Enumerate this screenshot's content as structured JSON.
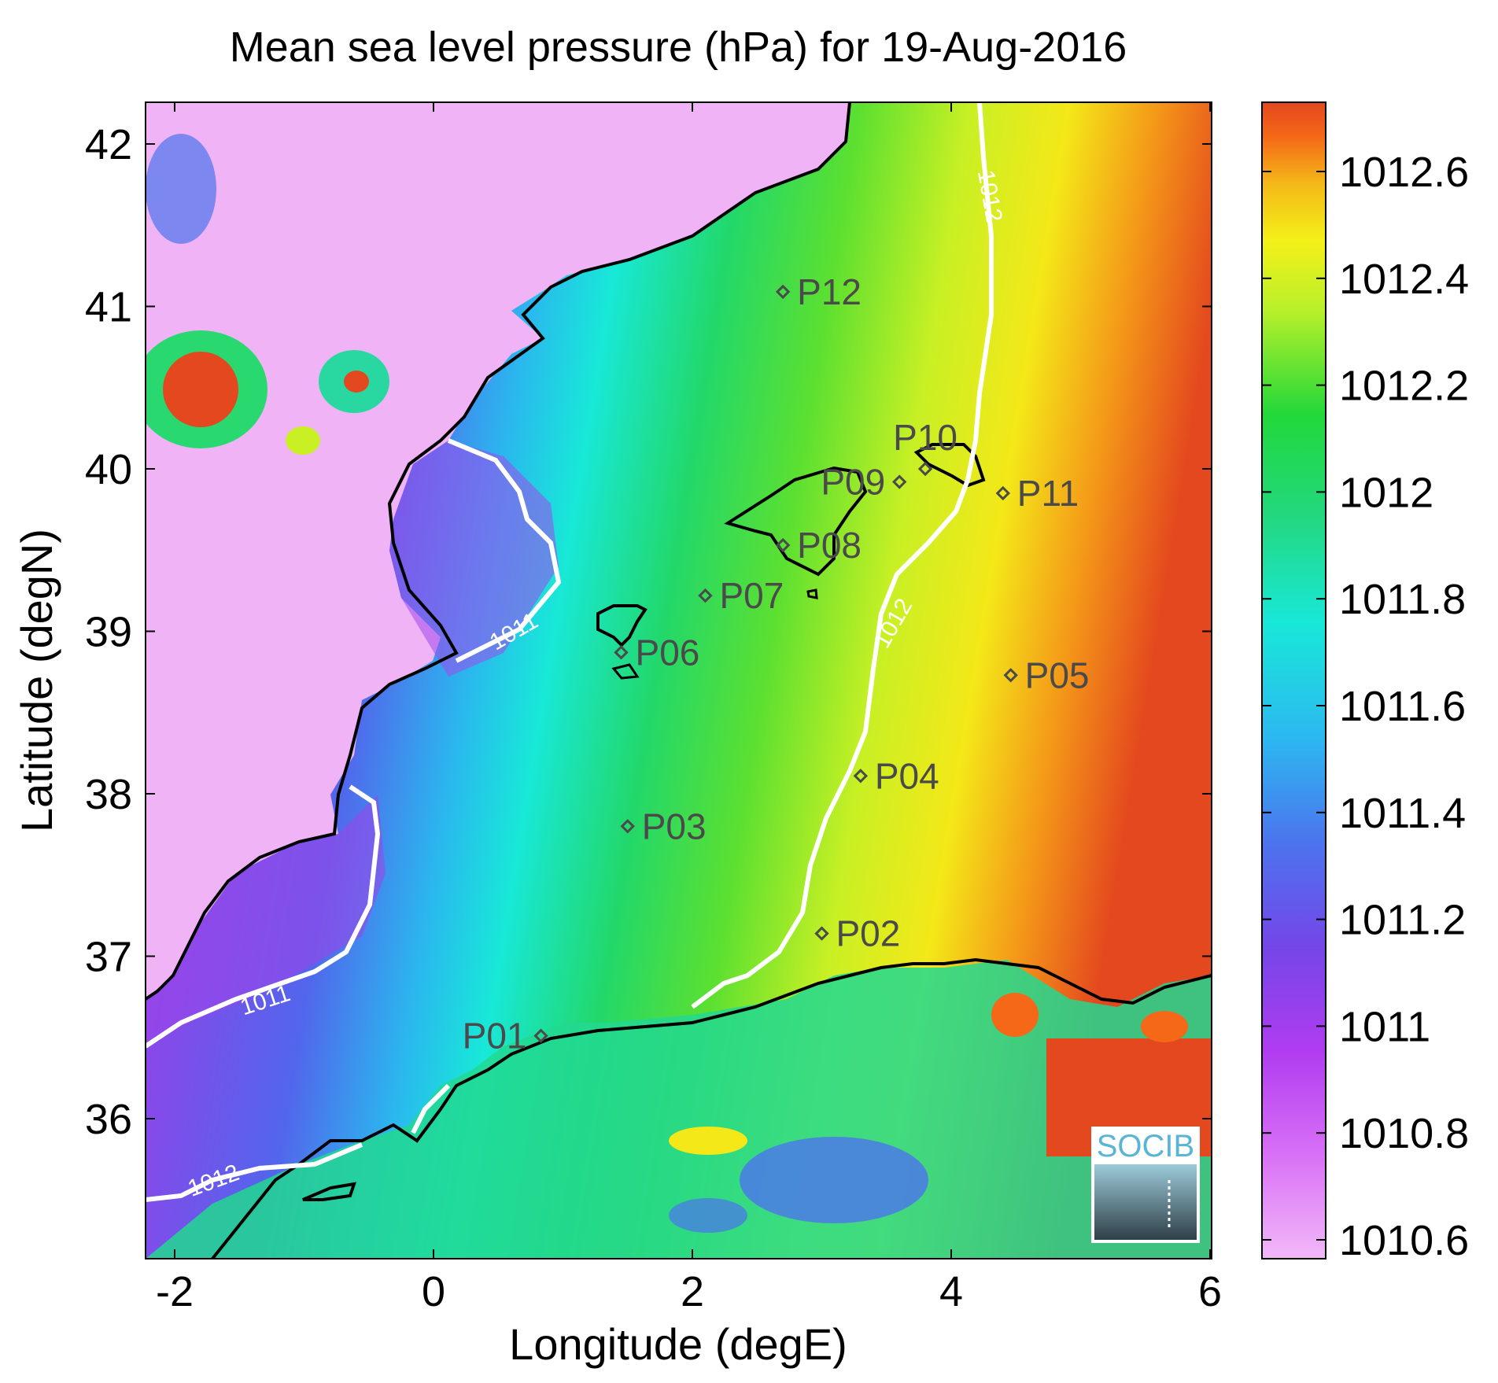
{
  "title": "Mean sea level pressure (hPa) for 19-Aug-2016",
  "xlabel": "Longitude (degE)",
  "ylabel": "Latitude (degN)",
  "x_ticks": [
    "-2",
    "0",
    "2",
    "4",
    "6"
  ],
  "y_ticks": [
    "36",
    "37",
    "38",
    "39",
    "40",
    "41",
    "42"
  ],
  "colorbar_ticks": [
    "1010.6",
    "1010.8",
    "1011",
    "1011.2",
    "1011.4",
    "1011.6",
    "1011.8",
    "1012",
    "1012.2",
    "1012.4",
    "1012.6"
  ],
  "logo_text": "SOCIB",
  "colors": {
    "min": "#f2b8f8",
    "magenta": "#c84ef0",
    "purple": "#7a46e8",
    "blue": "#4c74ee",
    "cyan": "#18e8e0",
    "teal_green": "#1ed8a0",
    "green": "#22d83a",
    "yellow_green": "#b8f02a",
    "yellow": "#f4f018",
    "orange": "#f49818",
    "max": "#e4481e",
    "coastline": "#000000",
    "contour": "#ffffff",
    "station": "#4a4a4a",
    "logo": "#5ab4d6"
  },
  "stations": [
    {
      "id": "P01",
      "lon": 0.83,
      "lat": 36.51
    },
    {
      "id": "P02",
      "lon": 3.0,
      "lat": 37.14
    },
    {
      "id": "P03",
      "lon": 1.5,
      "lat": 37.8
    },
    {
      "id": "P04",
      "lon": 3.3,
      "lat": 38.11
    },
    {
      "id": "P05",
      "lon": 4.46,
      "lat": 38.73
    },
    {
      "id": "P06",
      "lon": 1.45,
      "lat": 38.87
    },
    {
      "id": "P07",
      "lon": 2.1,
      "lat": 39.22
    },
    {
      "id": "P08",
      "lon": 2.7,
      "lat": 39.53
    },
    {
      "id": "P09",
      "lon": 3.6,
      "lat": 39.92
    },
    {
      "id": "P10",
      "lon": 3.8,
      "lat": 40.0
    },
    {
      "id": "P11",
      "lon": 4.4,
      "lat": 39.85
    },
    {
      "id": "P12",
      "lon": 2.7,
      "lat": 41.09
    }
  ],
  "contour_labels": [
    {
      "text": "1011",
      "lon": 0.62,
      "lat": 39.0
    },
    {
      "text": "1011",
      "lon": -1.3,
      "lat": 36.73
    },
    {
      "text": "1012",
      "lon": 4.3,
      "lat": 41.68
    },
    {
      "text": "1012",
      "lon": 3.55,
      "lat": 39.05
    },
    {
      "text": "1012",
      "lon": -1.7,
      "lat": 35.62
    }
  ]
}
